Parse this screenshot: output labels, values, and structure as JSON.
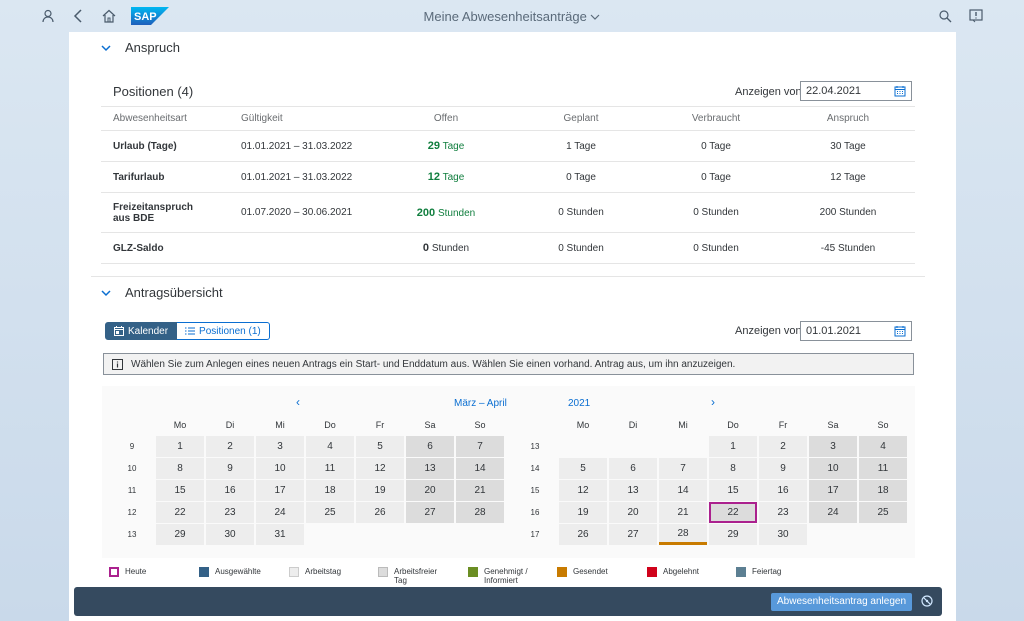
{
  "shell": {
    "title": "Meine Abwesenheitsanträge",
    "logo": "SAP",
    "icons": [
      "user-icon",
      "back-icon",
      "home-icon",
      "search-icon",
      "notification-icon"
    ]
  },
  "anspruch": {
    "section_title": "Anspruch",
    "positions_title": "Positionen (4)",
    "anzeigen_label": "Anzeigen von",
    "date": "22.04.2021",
    "headers": [
      "Abwesenheitsart",
      "Gültigkeit",
      "Offen",
      "Geplant",
      "Verbraucht",
      "Anspruch"
    ],
    "rows": [
      {
        "art": "Urlaub (Tage)",
        "gueltig": "01.01.2021 – 31.03.2022",
        "offen_n": "29",
        "offen_u": "Tage",
        "geplant": "1 Tage",
        "verbraucht": "0 Tage",
        "anspruch": "30 Tage"
      },
      {
        "art": "Tarifurlaub",
        "gueltig": "01.01.2021 – 31.03.2022",
        "offen_n": "12",
        "offen_u": "Tage",
        "geplant": "0 Tage",
        "verbraucht": "0 Tage",
        "anspruch": "12 Tage"
      },
      {
        "art": "Freizeitanspruch aus BDE",
        "gueltig": "01.07.2020 – 30.06.2021",
        "offen_n": "200",
        "offen_u": "Stunden",
        "geplant": "0 Stunden",
        "verbraucht": "0 Stunden",
        "anspruch": "200 Stunden"
      },
      {
        "art": "GLZ-Saldo",
        "gueltig": "",
        "offen_n": "0",
        "offen_u": "Stunden",
        "geplant": "0 Stunden",
        "verbraucht": "0 Stunden",
        "anspruch": "-45 Stunden"
      }
    ]
  },
  "uebersicht": {
    "section_title": "Antragsübersicht",
    "tab_kalender": "Kalender",
    "tab_positionen": "Positionen (1)",
    "anzeigen_label": "Anzeigen von",
    "date": "01.01.2021",
    "info_text": "Wählen Sie zum Anlegen eines neuen Antrags ein Start- und Enddatum aus. Wählen Sie einen vorhand. Antrag aus, um ihn anzuzeigen.",
    "month_header": "März – April",
    "year_header": "2021",
    "prev": "‹",
    "next": "›",
    "weekdays": [
      "Mo",
      "Di",
      "Mi",
      "Do",
      "Fr",
      "Sa",
      "So"
    ]
  },
  "legend": {
    "heute": "Heute",
    "ausgewaehlte": "Ausgewählte",
    "arbeitstag": "Arbeitstag",
    "arbeitsfrei": "Arbeitsfreier Tag",
    "genehmigt": "Genehmigt / Informiert",
    "gesendet": "Gesendet",
    "abgelehnt": "Abgelehnt",
    "feiertag": "Feiertag",
    "colors": {
      "heute": "#ab218e",
      "ausgewaehlte": "#346187",
      "arbeitstag": "#ededed",
      "arbeitsfrei": "#dcdcdc",
      "genehmigt": "#6b8e23",
      "gesendet": "#c87b00",
      "abgelehnt": "#d0021b",
      "feiertag": "#5c7f92"
    }
  },
  "footer": {
    "create_button": "Abwesenheitsantrag anlegen"
  }
}
